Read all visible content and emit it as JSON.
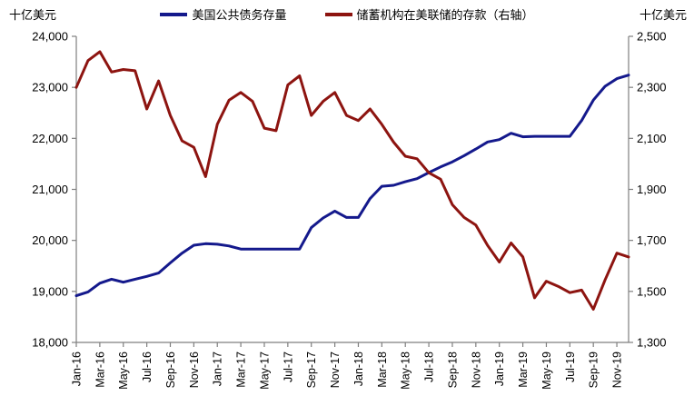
{
  "left_axis_unit": "十亿美元",
  "right_axis_unit": "十亿美元",
  "chart_data": {
    "type": "line",
    "x": [
      "Jan-16",
      "Feb-16",
      "Mar-16",
      "Apr-16",
      "May-16",
      "Jun-16",
      "Jul-16",
      "Aug-16",
      "Sep-16",
      "Oct-16",
      "Nov-16",
      "Dec-16",
      "Jan-17",
      "Feb-17",
      "Mar-17",
      "Apr-17",
      "May-17",
      "Jun-17",
      "Jul-17",
      "Aug-17",
      "Sep-17",
      "Oct-17",
      "Nov-17",
      "Dec-17",
      "Jan-18",
      "Feb-18",
      "Mar-18",
      "Apr-18",
      "May-18",
      "Jun-18",
      "Jul-18",
      "Aug-18",
      "Sep-18",
      "Oct-18",
      "Nov-18",
      "Dec-18",
      "Jan-19",
      "Feb-19",
      "Mar-19",
      "Apr-19",
      "May-19",
      "Jun-19",
      "Jul-19",
      "Aug-19",
      "Sep-19",
      "Oct-19",
      "Nov-19",
      "Dec-19"
    ],
    "x_tick_labels": [
      "Jan-16",
      "Mar-16",
      "May-16",
      "Jul-16",
      "Sep-16",
      "Nov-16",
      "Jan-17",
      "Mar-17",
      "May-17",
      "Jul-17",
      "Sep-17",
      "Nov-17",
      "Jan-18",
      "Mar-18",
      "May-18",
      "Jul-18",
      "Sep-18",
      "Nov-18",
      "Jan-19",
      "Mar-19",
      "May-19",
      "Jul-19",
      "Sep-19",
      "Nov-19"
    ],
    "series": [
      {
        "name": "美国公共债务存量",
        "axis": "left",
        "color": "#14198c",
        "values": [
          18915,
          18990,
          19160,
          19240,
          19180,
          19240,
          19295,
          19360,
          19560,
          19750,
          19905,
          19935,
          19925,
          19890,
          19830,
          19830,
          19830,
          19830,
          19830,
          19830,
          20250,
          20440,
          20575,
          20450,
          20450,
          20820,
          21060,
          21080,
          21150,
          21210,
          21330,
          21440,
          21540,
          21660,
          21790,
          21930,
          21975,
          22100,
          22030,
          22040,
          22040,
          22040,
          22040,
          22350,
          22750,
          23020,
          23170,
          23240
        ]
      },
      {
        "name": "储蓄机构在美联储的存款（右轴）",
        "axis": "right",
        "color": "#8d1410",
        "values": [
          2300,
          2405,
          2440,
          2360,
          2370,
          2365,
          2215,
          2325,
          2190,
          2090,
          2065,
          1950,
          2155,
          2250,
          2280,
          2245,
          2140,
          2130,
          2310,
          2345,
          2190,
          2245,
          2280,
          2190,
          2170,
          2215,
          2155,
          2085,
          2030,
          2020,
          1965,
          1940,
          1840,
          1790,
          1760,
          1680,
          1615,
          1690,
          1635,
          1475,
          1540,
          1520,
          1495,
          1505,
          1430,
          1545,
          1650,
          1635
        ]
      }
    ],
    "left_axis": {
      "min": 18000,
      "max": 24000,
      "step": 1000,
      "tick_labels": [
        "24,000",
        "23,000",
        "22,000",
        "21,000",
        "20,000",
        "19,000",
        "18,000"
      ]
    },
    "right_axis": {
      "min": 1300,
      "max": 2500,
      "step": 200,
      "tick_labels": [
        "2,500",
        "2,300",
        "2,100",
        "1,900",
        "1,700",
        "1,500",
        "1,300"
      ]
    },
    "grid": false,
    "legend_position": "top-center",
    "axis_color": "#7f7f7f"
  }
}
